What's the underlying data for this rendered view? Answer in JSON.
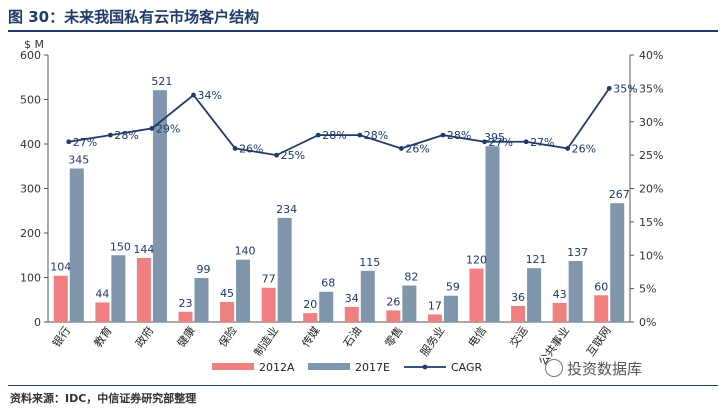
{
  "title": "图 30：未来我国私有云市场客户结构",
  "source": "资料来源：IDC，中信证券研究部整理",
  "watermark": "投资数据库",
  "colors": {
    "bar2012": "#f08080",
    "bar2017": "#8096ad",
    "line": "#1f3a6b",
    "title": "#1f3a6b"
  },
  "chart_data": {
    "type": "bar",
    "categories": [
      "银行",
      "教育",
      "政府",
      "健康",
      "保险",
      "制造业",
      "传媒",
      "石油",
      "零售",
      "服务业",
      "电信",
      "交运",
      "公共事业",
      "互联网"
    ],
    "series": [
      {
        "name": "2012A",
        "type": "bar",
        "axis": "left",
        "values": [
          104,
          44,
          144,
          23,
          45,
          77,
          20,
          34,
          26,
          17,
          120,
          36,
          43,
          60
        ]
      },
      {
        "name": "2017E",
        "type": "bar",
        "axis": "left",
        "values": [
          345,
          150,
          521,
          99,
          140,
          234,
          68,
          115,
          82,
          59,
          395,
          121,
          137,
          267
        ]
      },
      {
        "name": "CAGR",
        "type": "line",
        "axis": "right",
        "values": [
          27,
          28,
          29,
          34,
          26,
          25,
          28,
          28,
          26,
          28,
          27,
          27,
          26,
          35
        ],
        "labels": [
          "27%",
          "28%",
          "29%",
          "34%",
          "26%",
          "25%",
          "28%",
          "28%",
          "26%",
          "28%",
          "27%",
          "27%",
          "26%",
          "35%"
        ]
      }
    ],
    "y_left": {
      "label": "$ M",
      "min": 0,
      "max": 600,
      "ticks": [
        0,
        100,
        200,
        300,
        400,
        500,
        600
      ]
    },
    "y_right": {
      "min": 0,
      "max": 40,
      "ticks": [
        "0%",
        "5%",
        "10%",
        "15%",
        "20%",
        "25%",
        "30%",
        "35%",
        "40%"
      ]
    },
    "legend": {
      "position": "bottom",
      "entries": [
        "2012A",
        "2017E",
        "CAGR"
      ]
    }
  }
}
